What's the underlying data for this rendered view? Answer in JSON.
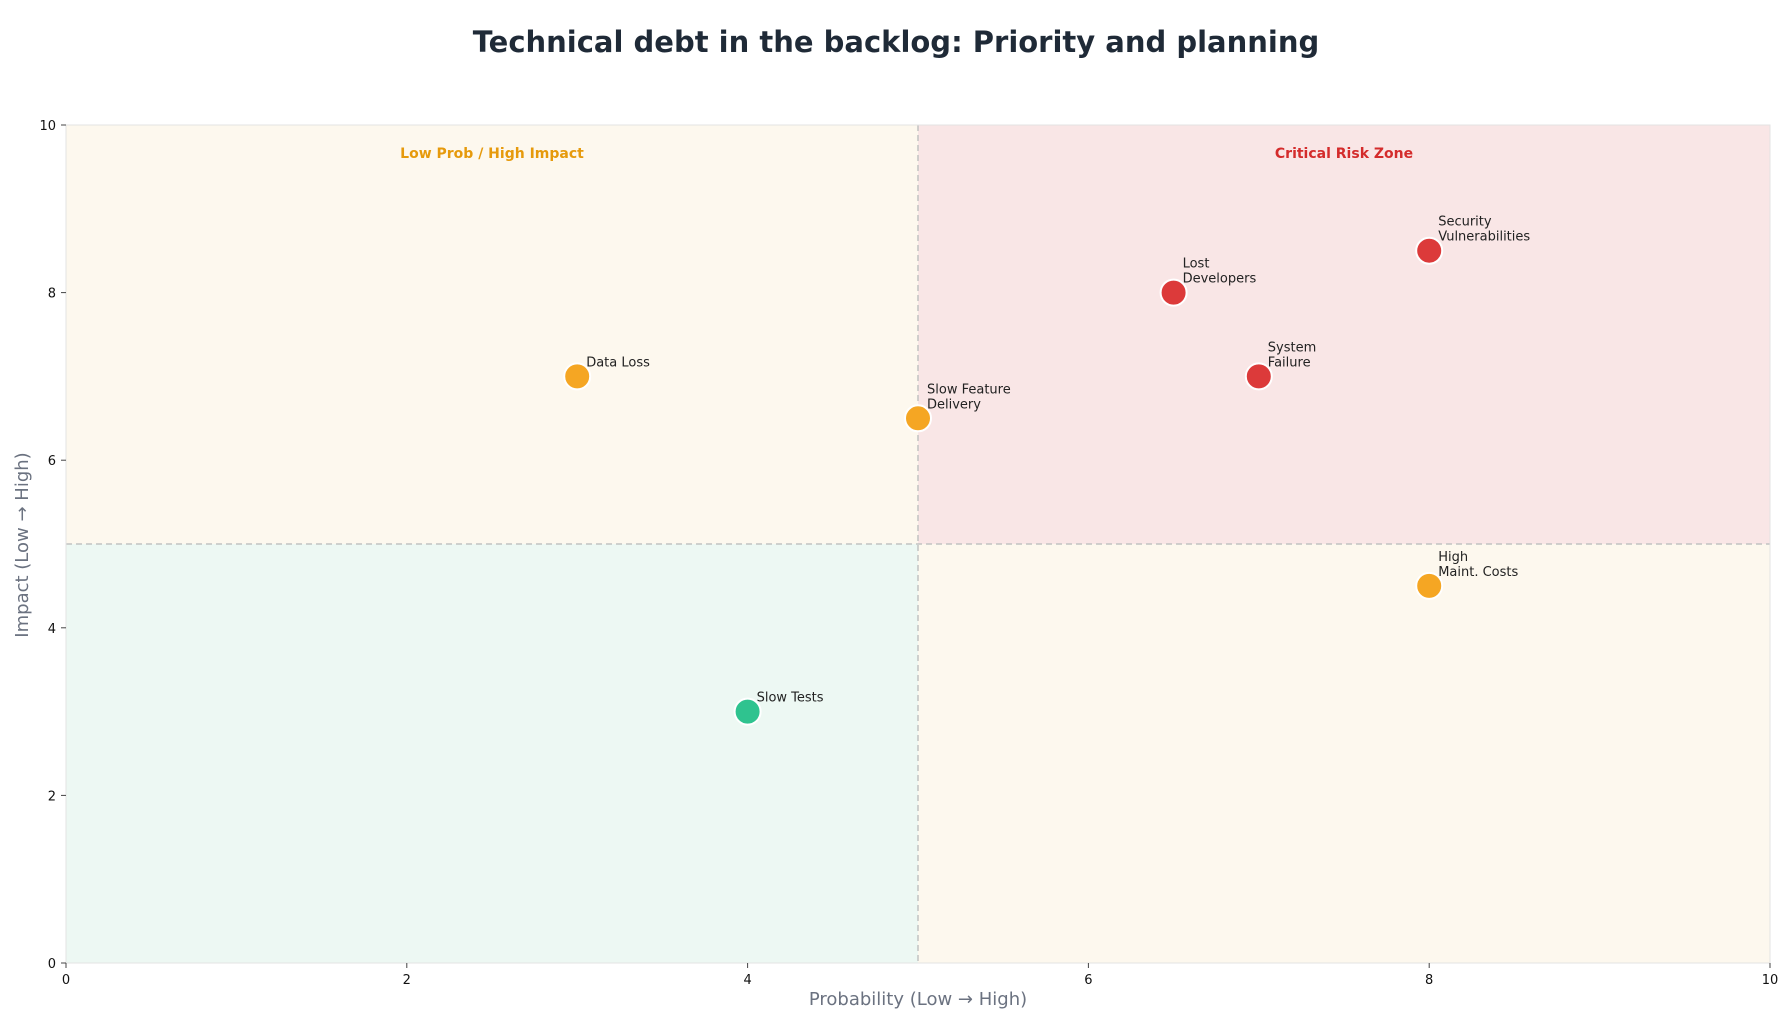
{
  "chart_data": {
    "type": "scatter",
    "title": "Technical debt in the backlog: Priority and planning",
    "xlabel": "Probability (Low → High)",
    "ylabel": "Impact (Low → High)",
    "xlim": [
      0,
      10
    ],
    "ylim": [
      0,
      10
    ],
    "xticks": [
      0,
      2,
      4,
      6,
      8,
      10
    ],
    "yticks": [
      0,
      2,
      4,
      6,
      8,
      10
    ],
    "grid": false,
    "thresholds": {
      "x": 5,
      "y": 5
    },
    "quadrants": [
      {
        "id": "low-prob-high-impact",
        "label": "Low Prob / High Impact",
        "x": [
          0,
          5
        ],
        "y": [
          5,
          10
        ],
        "fill": "#fdf8ee",
        "label_color": "#e69a0c"
      },
      {
        "id": "critical-risk-zone",
        "label": "Critical Risk Zone",
        "x": [
          5,
          10
        ],
        "y": [
          5,
          10
        ],
        "fill": "#f9e6e6",
        "label_color": "#d42c2c"
      },
      {
        "id": "low-risk",
        "label": "",
        "x": [
          0,
          5
        ],
        "y": [
          0,
          5
        ],
        "fill": "#edf8f3",
        "label_color": ""
      },
      {
        "id": "high-prob-low-impact",
        "label": "",
        "x": [
          5,
          10
        ],
        "y": [
          0,
          5
        ],
        "fill": "#fdf8ee",
        "label_color": ""
      }
    ],
    "points": [
      {
        "label": [
          "Security",
          "Vulnerabilities"
        ],
        "x": 8,
        "y": 8.5,
        "color": "#dc3a3a"
      },
      {
        "label": [
          "Lost",
          "Developers"
        ],
        "x": 6.5,
        "y": 8,
        "color": "#dc3a3a"
      },
      {
        "label": [
          "System",
          "Failure"
        ],
        "x": 7,
        "y": 7,
        "color": "#dc3a3a"
      },
      {
        "label": [
          "Data Loss"
        ],
        "x": 3,
        "y": 7,
        "color": "#f5a623"
      },
      {
        "label": [
          "Slow Feature",
          "Delivery"
        ],
        "x": 5,
        "y": 6.5,
        "color": "#f5a623"
      },
      {
        "label": [
          "High",
          "Maint. Costs"
        ],
        "x": 8,
        "y": 4.5,
        "color": "#f5a623"
      },
      {
        "label": [
          "Slow Tests"
        ],
        "x": 4,
        "y": 3,
        "color": "#2fc38f"
      }
    ]
  }
}
